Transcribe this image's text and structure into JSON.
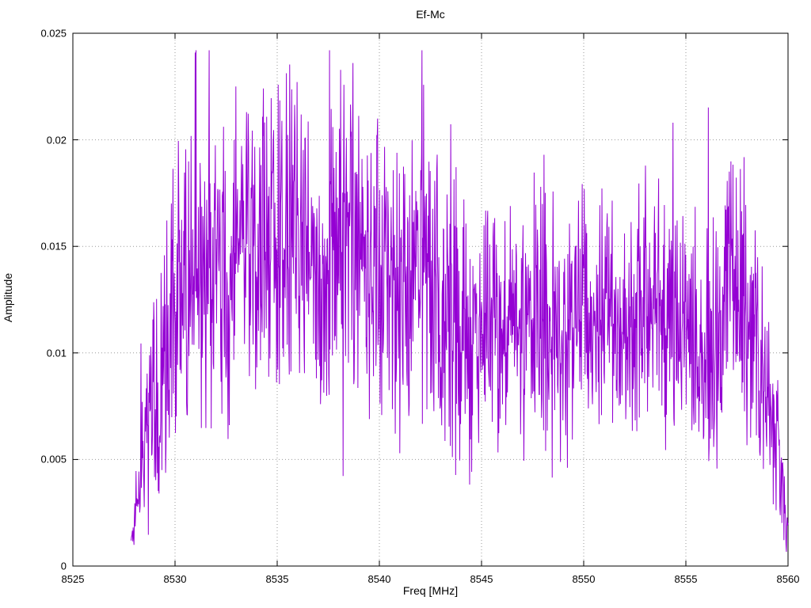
{
  "chart_data": {
    "type": "line",
    "title": "Ef-Mc",
    "xlabel": "Freq [MHz]",
    "ylabel": "Amplitude",
    "xlim": [
      8525,
      8560
    ],
    "ylim": [
      0,
      0.025
    ],
    "x_ticks": [
      8525,
      8530,
      8535,
      8540,
      8545,
      8550,
      8555,
      8560
    ],
    "x_tick_labels": [
      "8525",
      "8530",
      "8535",
      "8540",
      "8545",
      "8550",
      "8555",
      "8560"
    ],
    "y_ticks": [
      0,
      0.005,
      0.01,
      0.015,
      0.02,
      0.025
    ],
    "y_tick_labels": [
      "0",
      "0.005",
      "0.01",
      "0.015",
      "0.02",
      "0.025"
    ],
    "grid": true,
    "legend": "none",
    "line_color": "#9400d3",
    "grid_color": "#999999",
    "axis_color": "#000000",
    "series": [
      {
        "name": "Ef-Mc",
        "description": "Dense noisy amplitude spectrum from 8528 to 8560 MHz; rises steeply near 8528-8530, broad maximum ~0.013-0.023 between 8531 and 8543, settles ~0.008-0.017 from 8544 to 8558 with occasional peaks to ~0.020, falls to ~0.001 at 8560.",
        "signal": {
          "x_start": 8527.85,
          "x_end": 8560.0,
          "n_points": 1600,
          "noise_seed": 1337,
          "spike_probability": 0.05,
          "spike_gain": 1.6,
          "noise_gain": 1.45,
          "y_min_clamp": 0.0003,
          "y_max_clamp": 0.0242,
          "envelope": [
            {
              "x": 8527.85,
              "mean": 0.0012,
              "spread": 0.0006
            },
            {
              "x": 8528.3,
              "mean": 0.004,
              "spread": 0.003
            },
            {
              "x": 8529.0,
              "mean": 0.008,
              "spread": 0.005
            },
            {
              "x": 8529.6,
              "mean": 0.01,
              "spread": 0.006
            },
            {
              "x": 8530.2,
              "mean": 0.013,
              "spread": 0.005
            },
            {
              "x": 8531.0,
              "mean": 0.014,
              "spread": 0.005
            },
            {
              "x": 8531.8,
              "mean": 0.013,
              "spread": 0.006
            },
            {
              "x": 8532.6,
              "mean": 0.014,
              "spread": 0.005
            },
            {
              "x": 8533.4,
              "mean": 0.015,
              "spread": 0.005
            },
            {
              "x": 8534.2,
              "mean": 0.015,
              "spread": 0.006
            },
            {
              "x": 8535.0,
              "mean": 0.016,
              "spread": 0.006
            },
            {
              "x": 8536.0,
              "mean": 0.016,
              "spread": 0.006
            },
            {
              "x": 8537.0,
              "mean": 0.014,
              "spread": 0.006
            },
            {
              "x": 8538.0,
              "mean": 0.016,
              "spread": 0.006
            },
            {
              "x": 8539.0,
              "mean": 0.015,
              "spread": 0.006
            },
            {
              "x": 8540.0,
              "mean": 0.014,
              "spread": 0.006
            },
            {
              "x": 8541.0,
              "mean": 0.013,
              "spread": 0.005
            },
            {
              "x": 8542.0,
              "mean": 0.014,
              "spread": 0.006
            },
            {
              "x": 8543.0,
              "mean": 0.012,
              "spread": 0.005
            },
            {
              "x": 8544.0,
              "mean": 0.011,
              "spread": 0.006
            },
            {
              "x": 8545.0,
              "mean": 0.011,
              "spread": 0.005
            },
            {
              "x": 8546.0,
              "mean": 0.011,
              "spread": 0.004
            },
            {
              "x": 8547.0,
              "mean": 0.012,
              "spread": 0.005
            },
            {
              "x": 8548.0,
              "mean": 0.012,
              "spread": 0.005
            },
            {
              "x": 8549.0,
              "mean": 0.011,
              "spread": 0.004
            },
            {
              "x": 8550.0,
              "mean": 0.012,
              "spread": 0.004
            },
            {
              "x": 8551.0,
              "mean": 0.012,
              "spread": 0.004
            },
            {
              "x": 8552.0,
              "mean": 0.011,
              "spread": 0.004
            },
            {
              "x": 8553.0,
              "mean": 0.012,
              "spread": 0.004
            },
            {
              "x": 8554.0,
              "mean": 0.012,
              "spread": 0.005
            },
            {
              "x": 8555.0,
              "mean": 0.011,
              "spread": 0.004
            },
            {
              "x": 8556.0,
              "mean": 0.01,
              "spread": 0.005
            },
            {
              "x": 8557.0,
              "mean": 0.013,
              "spread": 0.005
            },
            {
              "x": 8558.0,
              "mean": 0.012,
              "spread": 0.005
            },
            {
              "x": 8559.0,
              "mean": 0.008,
              "spread": 0.004
            },
            {
              "x": 8559.6,
              "mean": 0.005,
              "spread": 0.003
            },
            {
              "x": 8560.0,
              "mean": 0.0015,
              "spread": 0.0012
            }
          ]
        }
      }
    ]
  }
}
